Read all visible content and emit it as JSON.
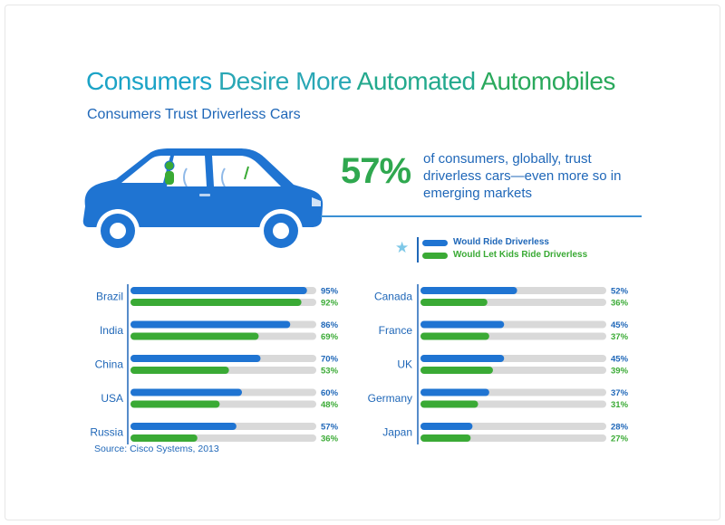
{
  "title": {
    "w1": "Consumers",
    "w2": "Desire More",
    "w3": "Automated",
    "w4": "Automobiles"
  },
  "subtitle": "Consumers Trust Driverless Cars",
  "stat": {
    "value": "57%",
    "text": "of consumers, globally, trust driverless cars—even more so in emerging markets"
  },
  "legend": {
    "ride": "Would Ride Driverless",
    "kids": "Would Let Kids Ride Driverless"
  },
  "source": "Source: Cisco Systems, 2013",
  "colors": {
    "ride": "#1f74d2",
    "kids": "#3aaa35",
    "track": "#d9d9d9",
    "country_text": "#1f67b8"
  },
  "icons": [
    "car-icon",
    "star-icon"
  ],
  "chart_data": {
    "type": "bar",
    "orientation": "horizontal",
    "xlim": [
      0,
      100
    ],
    "series": [
      {
        "name": "Would Ride Driverless",
        "key": "ride"
      },
      {
        "name": "Would Let Kids Ride Driverless",
        "key": "kids"
      }
    ],
    "groups": [
      {
        "countries": [
          {
            "name": "Brazil",
            "ride": 95,
            "kids": 92,
            "ride_label": "95%",
            "kids_label": "92%"
          },
          {
            "name": "India",
            "ride": 86,
            "kids": 69,
            "ride_label": "86%",
            "kids_label": "69%"
          },
          {
            "name": "China",
            "ride": 70,
            "kids": 53,
            "ride_label": "70%",
            "kids_label": "53%"
          },
          {
            "name": "USA",
            "ride": 60,
            "kids": 48,
            "ride_label": "60%",
            "kids_label": "48%"
          },
          {
            "name": "Russia",
            "ride": 57,
            "kids": 36,
            "ride_label": "57%",
            "kids_label": "36%"
          }
        ]
      },
      {
        "countries": [
          {
            "name": "Canada",
            "ride": 52,
            "kids": 36,
            "ride_label": "52%",
            "kids_label": "36%"
          },
          {
            "name": "France",
            "ride": 45,
            "kids": 37,
            "ride_label": "45%",
            "kids_label": "37%"
          },
          {
            "name": "UK",
            "ride": 45,
            "kids": 39,
            "ride_label": "45%",
            "kids_label": "39%"
          },
          {
            "name": "Germany",
            "ride": 37,
            "kids": 31,
            "ride_label": "37%",
            "kids_label": "31%"
          },
          {
            "name": "Japan",
            "ride": 28,
            "kids": 27,
            "ride_label": "28%",
            "kids_label": "27%"
          }
        ]
      }
    ]
  }
}
